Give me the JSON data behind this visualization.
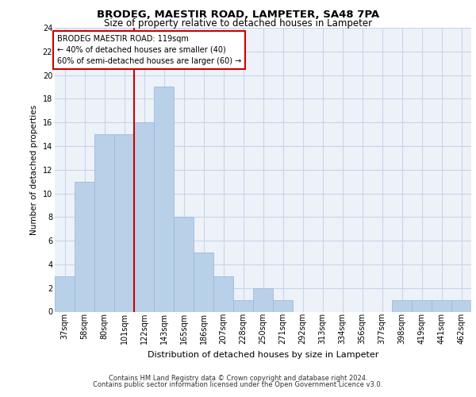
{
  "title": "BRODEG, MAESTIR ROAD, LAMPETER, SA48 7PA",
  "subtitle": "Size of property relative to detached houses in Lampeter",
  "xlabel": "Distribution of detached houses by size in Lampeter",
  "ylabel": "Number of detached properties",
  "categories": [
    "37sqm",
    "58sqm",
    "80sqm",
    "101sqm",
    "122sqm",
    "143sqm",
    "165sqm",
    "186sqm",
    "207sqm",
    "228sqm",
    "250sqm",
    "271sqm",
    "292sqm",
    "313sqm",
    "334sqm",
    "356sqm",
    "377sqm",
    "398sqm",
    "419sqm",
    "441sqm",
    "462sqm"
  ],
  "values": [
    3,
    11,
    15,
    15,
    16,
    19,
    8,
    5,
    3,
    1,
    2,
    1,
    0,
    0,
    0,
    0,
    0,
    1,
    1,
    1,
    1
  ],
  "bar_color": "#b8d0e8",
  "bar_edge_color": "#a0bcd8",
  "vline_color": "#cc0000",
  "ylim": [
    0,
    24
  ],
  "yticks": [
    0,
    2,
    4,
    6,
    8,
    10,
    12,
    14,
    16,
    18,
    20,
    22,
    24
  ],
  "annotation_title": "BRODEG MAESTIR ROAD: 119sqm",
  "annotation_line1": "← 40% of detached houses are smaller (40)",
  "annotation_line2": "60% of semi-detached houses are larger (60) →",
  "annotation_box_color": "#cc0000",
  "background_color": "#edf2f9",
  "footer_line1": "Contains HM Land Registry data © Crown copyright and database right 2024.",
  "footer_line2": "Contains public sector information licensed under the Open Government Licence v3.0.",
  "title_fontsize": 9.5,
  "subtitle_fontsize": 8.5,
  "ylabel_fontsize": 7.5,
  "xlabel_fontsize": 8,
  "tick_fontsize": 7,
  "ann_fontsize": 7,
  "footer_fontsize": 6
}
